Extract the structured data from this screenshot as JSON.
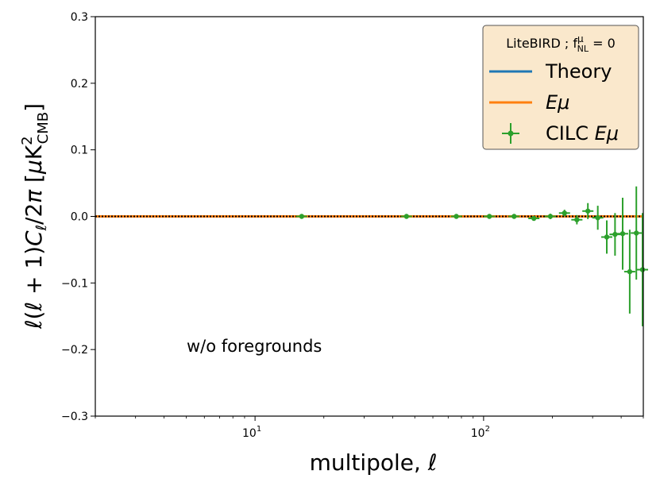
{
  "chart_data": {
    "type": "scatter",
    "xlabel": "multipole, ℓ",
    "ylabel": "ℓ(ℓ + 1)Cℓ/2π [μK²CMB]",
    "xscale": "log",
    "xlim": [
      2,
      500
    ],
    "ylim": [
      -0.3,
      0.3
    ],
    "y_ticks": [
      "−0.3",
      "−0.2",
      "−0.1",
      "0.0",
      "0.1",
      "0.2",
      "0.3"
    ],
    "x_major_ticks": [
      {
        "value": 10,
        "base": "10",
        "exp": "1"
      },
      {
        "value": 100,
        "base": "10",
        "exp": "2"
      }
    ],
    "annotation": "w/o foregrounds",
    "legend": {
      "title": "LiteBIRD ; f",
      "title_sub": "NL",
      "title_sup": "μ",
      "title_tail": " = 0",
      "placement": "upper right"
    },
    "series": [
      {
        "name": "Theory",
        "kind": "line",
        "color": "#1f77b4",
        "x": [
          2,
          500
        ],
        "y": [
          0.0,
          0.0
        ]
      },
      {
        "name": "Eμ",
        "kind": "line",
        "color": "#ff7f0e",
        "x": [
          2,
          500
        ],
        "y": [
          0.0,
          0.0
        ]
      },
      {
        "name": "CILC Eμ",
        "kind": "errorbar",
        "color": "#2ca02c",
        "points": [
          {
            "x": 16,
            "y": 0.0,
            "err": 0.001
          },
          {
            "x": 46,
            "y": 0.0,
            "err": 0.001
          },
          {
            "x": 76,
            "y": 0.0,
            "err": 0.001
          },
          {
            "x": 106,
            "y": 0.0,
            "err": 0.002
          },
          {
            "x": 136,
            "y": 0.0,
            "err": 0.002
          },
          {
            "x": 166,
            "y": -0.003,
            "err": 0.003
          },
          {
            "x": 196,
            "y": 0.0,
            "err": 0.004
          },
          {
            "x": 226,
            "y": 0.005,
            "err": 0.005
          },
          {
            "x": 256,
            "y": -0.005,
            "err": 0.007
          },
          {
            "x": 286,
            "y": 0.008,
            "err": 0.012
          },
          {
            "x": 316,
            "y": -0.002,
            "err": 0.018
          },
          {
            "x": 346,
            "y": -0.031,
            "err": 0.025
          },
          {
            "x": 376,
            "y": -0.027,
            "err": 0.032
          },
          {
            "x": 406,
            "y": -0.026,
            "err": 0.054
          },
          {
            "x": 436,
            "y": -0.083,
            "err": 0.063
          },
          {
            "x": 466,
            "y": -0.025,
            "err": 0.07
          },
          {
            "x": 496,
            "y": -0.08,
            "err": 0.085
          }
        ]
      }
    ]
  }
}
